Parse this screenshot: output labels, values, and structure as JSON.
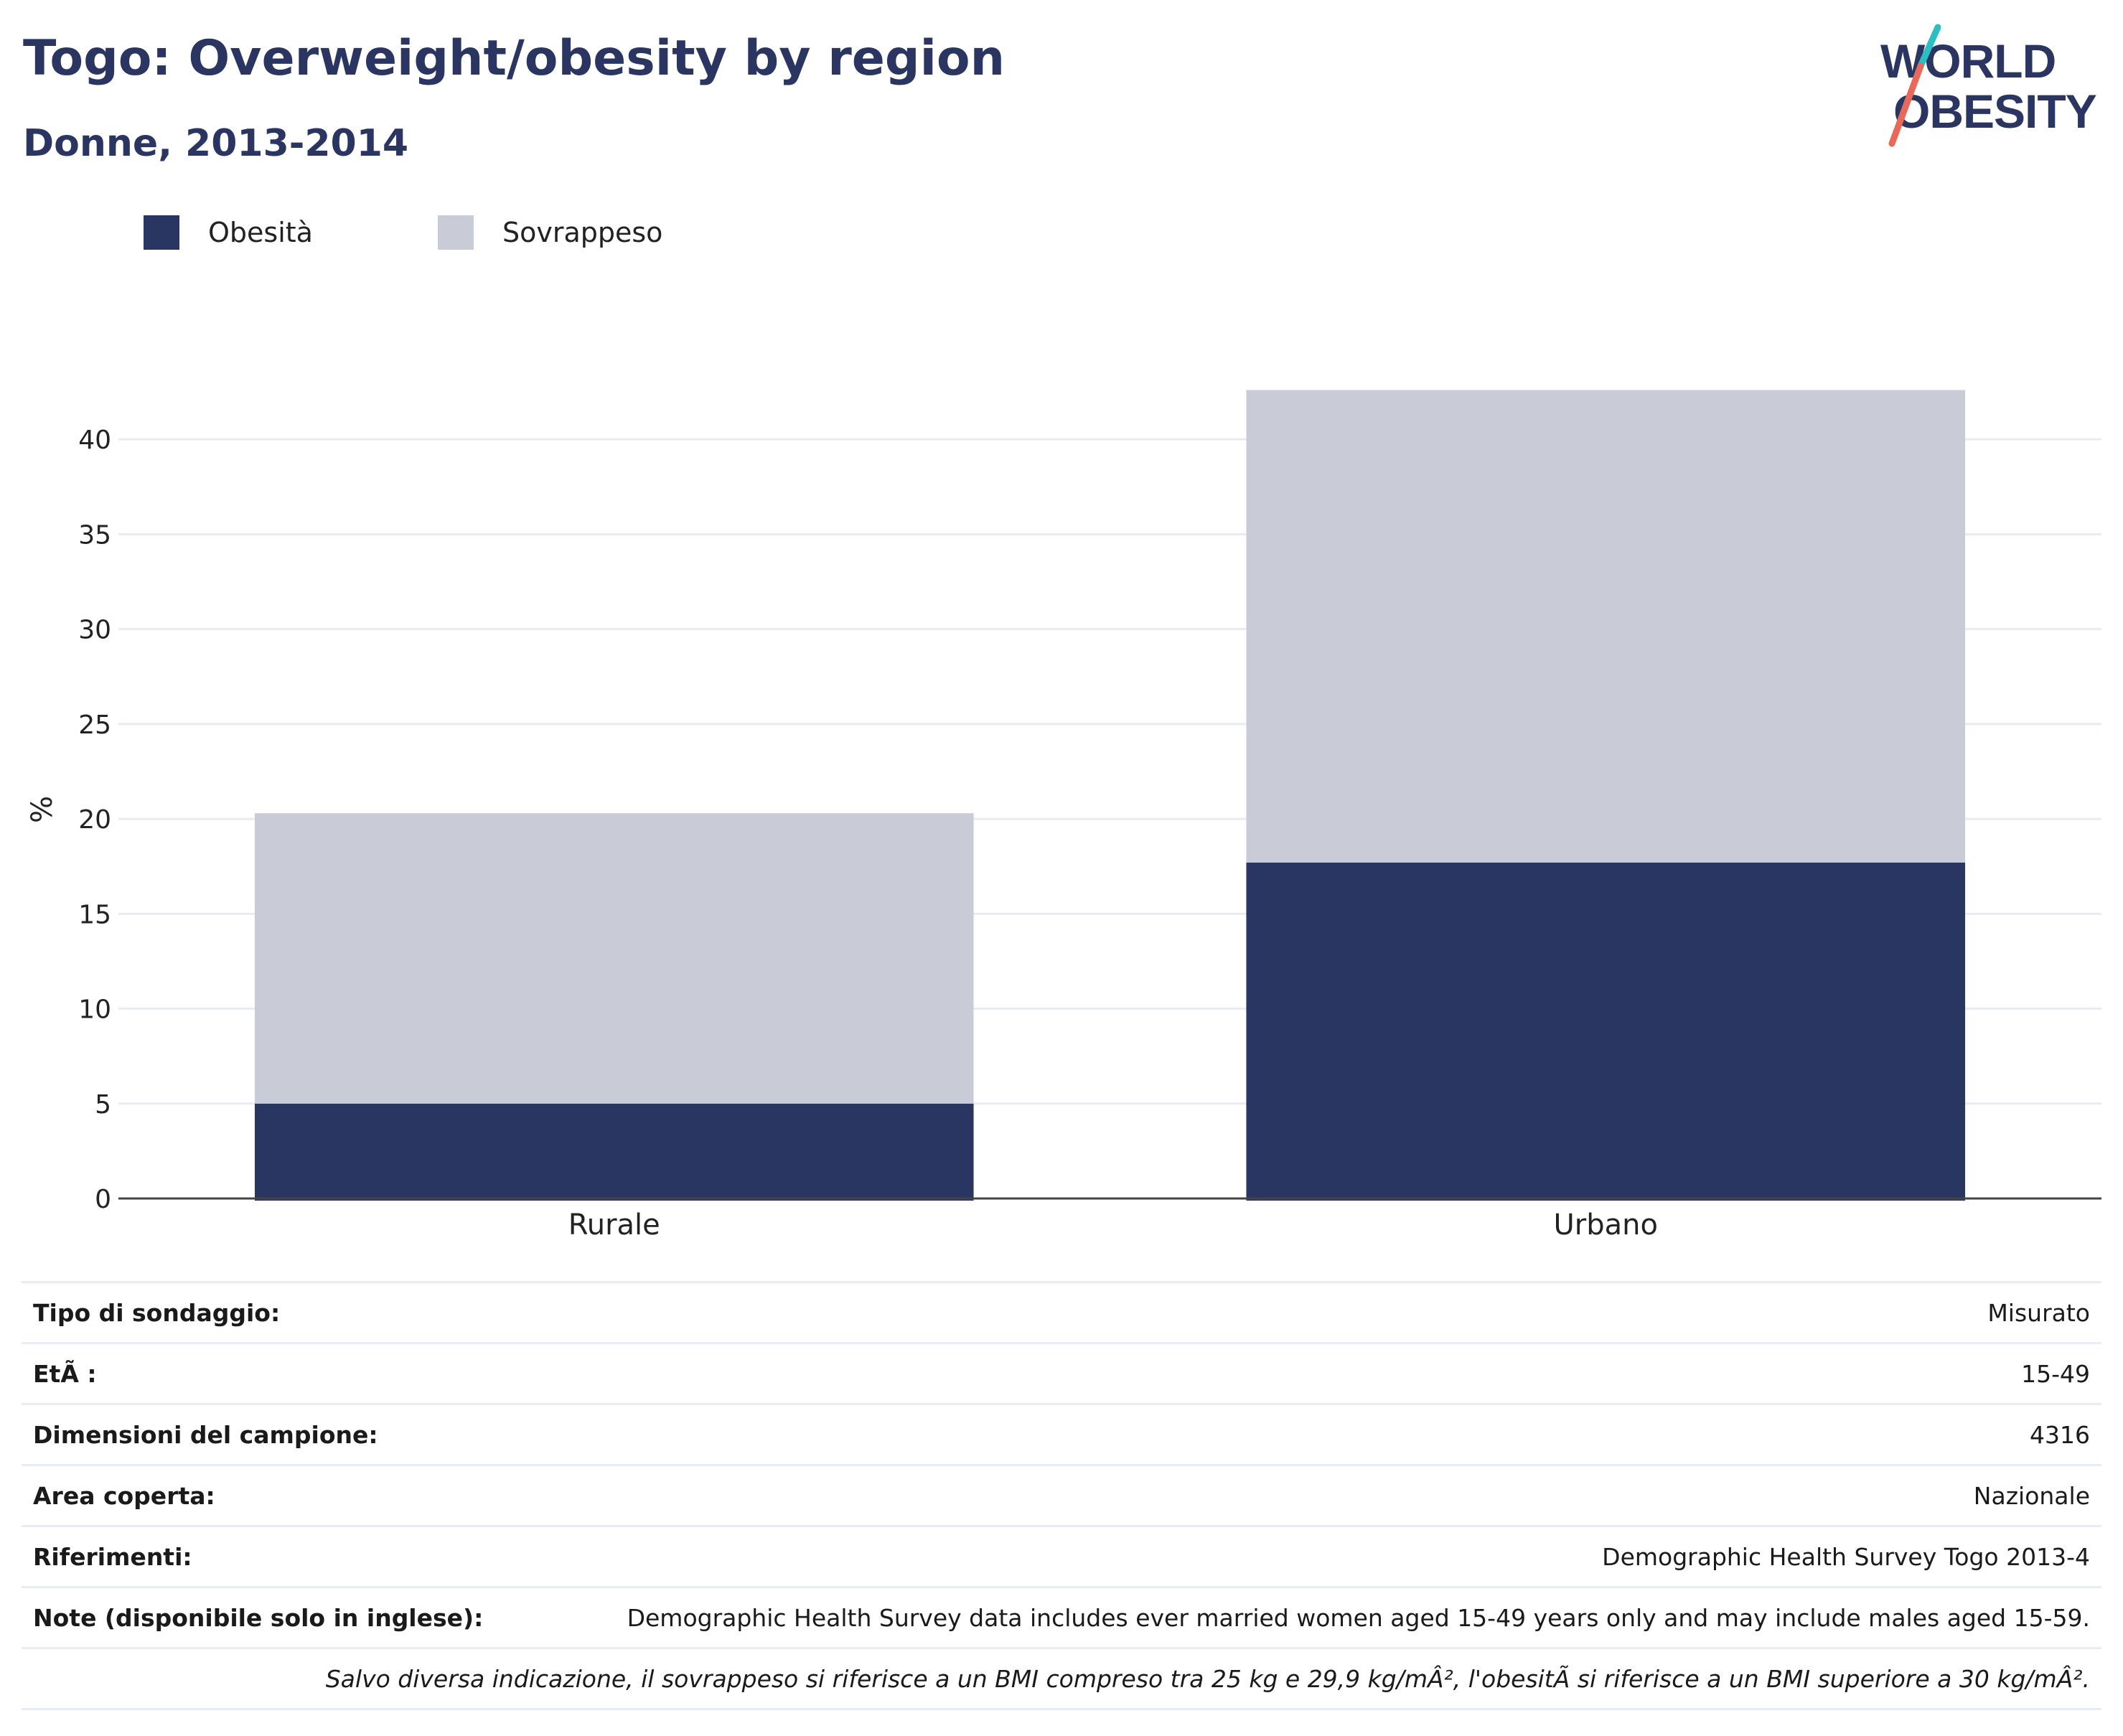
{
  "header": {
    "title": "Togo: Overweight/obesity by region",
    "subtitle": "Donne, 2013-2014"
  },
  "logo": {
    "line1": "WORLD",
    "line2": "OBESITY"
  },
  "legend": [
    {
      "label": "Obesità",
      "color": "#293662"
    },
    {
      "label": "Sovrappeso",
      "color": "#c9ccd7"
    }
  ],
  "colors": {
    "obesity": "#293662",
    "overweight": "#c9ccd7",
    "title": "#2a3562",
    "logo_teal": "#2bbfc1",
    "logo_coral": "#e8685a"
  },
  "chart_data": {
    "type": "bar",
    "stacked": true,
    "categories": [
      "Rurale",
      "Urbano"
    ],
    "series": [
      {
        "name": "Obesità",
        "values": [
          5.0,
          17.7
        ]
      },
      {
        "name": "Sovrappeso",
        "values": [
          15.3,
          24.9
        ]
      }
    ],
    "ylabel": "%",
    "ylim": [
      0,
      45
    ],
    "yticks": [
      0,
      5,
      10,
      15,
      20,
      25,
      30,
      35,
      40
    ],
    "grid": true,
    "legend_position": "top-left"
  },
  "info": [
    {
      "key": "Tipo di sondaggio:",
      "value": "Misurato"
    },
    {
      "key": "EtÃ :",
      "value": "15-49"
    },
    {
      "key": "Dimensioni del campione:",
      "value": "4316"
    },
    {
      "key": "Area coperta:",
      "value": "Nazionale"
    },
    {
      "key": "Riferimenti:",
      "value": "Demographic Health Survey Togo 2013-4"
    },
    {
      "key": "Note (disponibile solo in inglese):",
      "value": "Demographic Health Survey data includes ever married women aged 15-49 years only and may include males aged 15-59."
    }
  ],
  "footnote": "Salvo diversa indicazione, il sovrappeso si riferisce a un BMI compreso tra 25 kg e 29,9 kg/mÂ², l'obesitÃ  si riferisce a un BMI superiore a 30 kg/mÂ²."
}
